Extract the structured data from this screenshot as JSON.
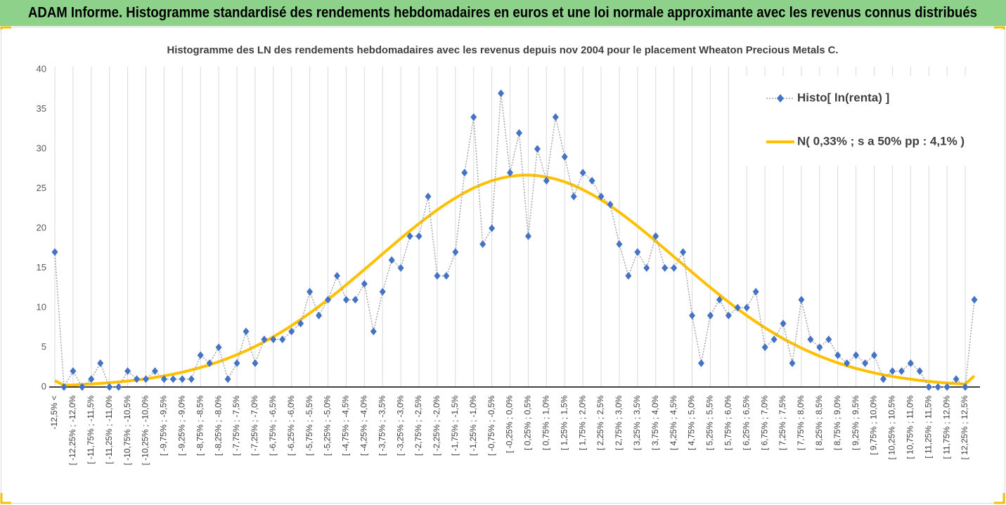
{
  "chart_data": {
    "type": "line",
    "title": "ADAM Informe. Histogramme standardisé des rendements hebdomadaires en euros et une loi normale approximante avec les revenus connus distribués",
    "subtitle": "Histogramme des LN des rendements hebdomadaires avec les revenus depuis nov 2004 pour le placement Wheaton Precious Metals C.",
    "categories": [
      "-12,5% <",
      null,
      "[ -12,25% ; -12,0%",
      null,
      "[ -11,75% ; -11,5%",
      null,
      "[ -11,25% ; -11,0%",
      null,
      "[ -10,75% ; -10,5%",
      null,
      "[ -10,25% ; -10,0%",
      null,
      "[ -9,75% ; -9,5%",
      null,
      "[ -9,25% ; -9,0%",
      null,
      "[ -8,75% ; -8,5%",
      null,
      "[ -8,25% ; -8,0%",
      null,
      "[ -7,75% ; -7,5%",
      null,
      "[ -7,25% ; -7,0%",
      null,
      "[ -6,75% ; -6,5%",
      null,
      "[ -6,25% ; -6,0%",
      null,
      "[ -5,75% ; -5,5%",
      null,
      "[ -5,25% ; -5,0%",
      null,
      "[ -4,75% ; -4,5%",
      null,
      "[ -4,25% ; -4,0%",
      null,
      "[ -3,75% ; -3,5%",
      null,
      "[ -3,25% ; -3,0%",
      null,
      "[ -2,75% ; -2,5%",
      null,
      "[ -2,25% ; -2,0%",
      null,
      "[ -1,75% ; -1,5%",
      null,
      "[ -1,25% ; -1,0%",
      null,
      "[ -0,75% ; -0,5%",
      null,
      "[ -0,25% ; 0,0%",
      null,
      "[ 0,25% ; 0,5%",
      null,
      "[ 0,75% ; 1,0%",
      null,
      "[ 1,25% ; 1,5%",
      null,
      "[ 1,75% ; 2,0%",
      null,
      "[ 2,25% ; 2,5%",
      null,
      "[ 2,75% ; 3,0%",
      null,
      "[ 3,25% ; 3,5%",
      null,
      "[ 3,75% ; 4,0%",
      null,
      "[ 4,25% ; 4,5%",
      null,
      "[ 4,75% ; 5,0%",
      null,
      "[ 5,25% ; 5,5%",
      null,
      "[ 5,75% ; 6,0%",
      null,
      "[ 6,25% ; 6,5%",
      null,
      "[ 6,75% ; 7,0%",
      null,
      "[ 7,25% ; 7,5%",
      null,
      "[ 7,75% ; 8,0%",
      null,
      "[ 8,25% ; 8,5%",
      null,
      "[ 8,75% ; 9,0%",
      null,
      "[ 9,25% ; 9,5%",
      null,
      "[ 9,75% ; 10,0%",
      null,
      "[ 10,25% ; 10,5%",
      null,
      "[ 10,75% ; 11,0%",
      null,
      "[ 11,25% ; 11,5%",
      null,
      "[ 11,75% ; 12,0%",
      null,
      "[ 12,25% ; 12,5%",
      null
    ],
    "series": [
      {
        "name": "Histo[ ln(renta) ]",
        "color": "#4472c4",
        "line_color": "#a6a6a6",
        "marker": "diamond",
        "values": [
          17,
          0,
          2,
          0,
          1,
          3,
          0,
          0,
          2,
          1,
          1,
          2,
          1,
          1,
          1,
          1,
          4,
          3,
          5,
          1,
          3,
          7,
          3,
          6,
          6,
          6,
          7,
          8,
          12,
          9,
          11,
          14,
          11,
          11,
          13,
          7,
          12,
          16,
          15,
          19,
          19,
          24,
          14,
          14,
          17,
          27,
          34,
          18,
          20,
          37,
          27,
          32,
          19,
          30,
          26,
          34,
          29,
          24,
          27,
          26,
          24,
          23,
          18,
          14,
          17,
          15,
          19,
          15,
          15,
          17,
          9,
          3,
          9,
          11,
          9,
          10,
          10,
          12,
          5,
          6,
          8,
          3,
          11,
          6,
          5,
          6,
          4,
          3,
          4,
          3,
          4,
          1,
          2,
          2,
          3,
          2,
          0,
          0,
          0,
          1,
          0,
          11
        ]
      },
      {
        "name": "N( 0,33% ; s a 50% pp : 4,1% )",
        "color": "#ffc000",
        "values": [
          0.8,
          0.22,
          0.26,
          0.32,
          0.38,
          0.45,
          0.54,
          0.64,
          0.75,
          0.88,
          1.03,
          1.2,
          1.4,
          1.62,
          1.87,
          2.15,
          2.46,
          2.8,
          3.19,
          3.61,
          4.07,
          4.57,
          5.11,
          5.7,
          6.33,
          7.01,
          7.73,
          8.5,
          9.3,
          10.14,
          11.02,
          11.93,
          12.87,
          13.83,
          14.8,
          15.78,
          16.77,
          17.75,
          18.72,
          19.67,
          20.59,
          21.47,
          22.31,
          23.1,
          23.82,
          24.49,
          25.07,
          25.57,
          25.99,
          26.31,
          26.54,
          26.67,
          26.7,
          26.63,
          26.46,
          26.2,
          25.85,
          25.4,
          24.87,
          24.26,
          23.58,
          22.83,
          22.03,
          21.17,
          20.27,
          19.34,
          18.38,
          17.4,
          16.42,
          15.44,
          14.46,
          13.49,
          12.54,
          11.62,
          10.72,
          9.82,
          9.0,
          8.21,
          7.46,
          6.76,
          6.1,
          5.48,
          4.91,
          4.38,
          3.89,
          3.45,
          3.04,
          2.67,
          2.34,
          2.05,
          1.78,
          1.54,
          1.33,
          1.14,
          0.98,
          0.83,
          0.71,
          0.6,
          0.51,
          0.43,
          0.36,
          1.4
        ]
      }
    ],
    "ylim": [
      0,
      40
    ],
    "yticks": [
      0,
      5,
      10,
      15,
      20,
      25,
      30,
      35,
      40
    ],
    "grid": "x",
    "legend": "top-right"
  }
}
